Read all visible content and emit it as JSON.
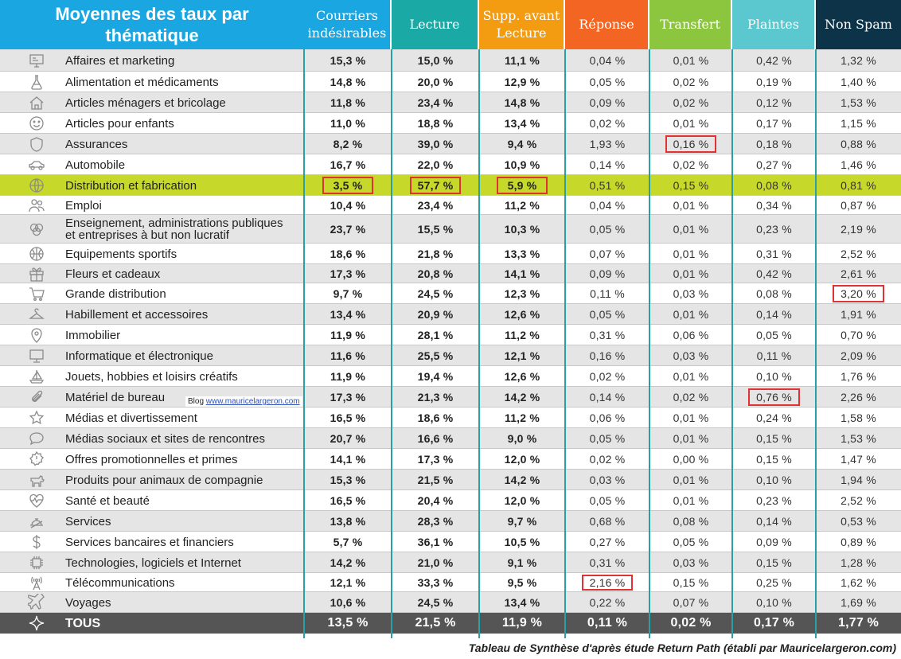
{
  "chart_data": {
    "type": "table",
    "title": "Moyennes des taux par thématique",
    "columns": [
      "Courriers indésirables",
      "Lecture",
      "Supp. avant Lecture",
      "Réponse",
      "Transfert",
      "Plaintes",
      "Non Spam"
    ],
    "column_colors": [
      "#1aa6e0",
      "#1ba9a6",
      "#f39c12",
      "#f26522",
      "#8cc63f",
      "#5bc7cf",
      "#0d3349"
    ],
    "rows": [
      {
        "label": "Affaires et marketing",
        "icon": "presentation-icon",
        "values": [
          "15,3 %",
          "15,0 %",
          "11,1 %",
          "0,04 %",
          "0,01 %",
          "0,42 %",
          "1,32 %"
        ]
      },
      {
        "label": "Alimentation et médicaments",
        "icon": "flask-icon",
        "values": [
          "14,8 %",
          "20,0 %",
          "12,9 %",
          "0,05 %",
          "0,02 %",
          "0,19 %",
          "1,40 %"
        ]
      },
      {
        "label": "Articles ménagers et bricolage",
        "icon": "house-icon",
        "values": [
          "11,8 %",
          "23,4 %",
          "14,8 %",
          "0,09 %",
          "0,02 %",
          "0,12 %",
          "1,53 %"
        ]
      },
      {
        "label": "Articles pour enfants",
        "icon": "smiley-icon",
        "values": [
          "11,0 %",
          "18,8 %",
          "13,4 %",
          "0,02 %",
          "0,01 %",
          "0,17 %",
          "1,15 %"
        ]
      },
      {
        "label": "Assurances",
        "icon": "shield-icon",
        "values": [
          "8,2 %",
          "39,0 %",
          "9,4 %",
          "1,93 %",
          "0,16 %",
          "0,18 %",
          "0,88 %"
        ]
      },
      {
        "label": "Automobile",
        "icon": "car-icon",
        "values": [
          "16,7 %",
          "22,0 %",
          "10,9 %",
          "0,14 %",
          "0,02 %",
          "0,27 %",
          "1,46 %"
        ]
      },
      {
        "label": "Distribution et fabrication",
        "icon": "globe-icon",
        "values": [
          "3,5 %",
          "57,7 %",
          "5,9 %",
          "0,51 %",
          "0,15 %",
          "0,08 %",
          "0,81 %"
        ]
      },
      {
        "label": "Emploi",
        "icon": "people-icon",
        "values": [
          "10,4 %",
          "23,4 %",
          "11,2 %",
          "0,04 %",
          "0,01 %",
          "0,34 %",
          "0,87 %"
        ]
      },
      {
        "label": "Enseignement, administrations publiques et entreprises à but non lucratif",
        "label_lines": [
          "Enseignement, administrations publiques",
          "et entreprises à but non lucratif"
        ],
        "icon": "circles-icon",
        "values": [
          "23,7 %",
          "15,5 %",
          "10,3 %",
          "0,05 %",
          "0,01 %",
          "0,23 %",
          "2,19 %"
        ]
      },
      {
        "label": "Equipements sportifs",
        "icon": "ball-icon",
        "values": [
          "18,6 %",
          "21,8 %",
          "13,3 %",
          "0,07 %",
          "0,01 %",
          "0,31 %",
          "2,52 %"
        ]
      },
      {
        "label": "Fleurs et cadeaux",
        "icon": "gift-icon",
        "values": [
          "17,3 %",
          "20,8 %",
          "14,1 %",
          "0,09 %",
          "0,01 %",
          "0,42 %",
          "2,61 %"
        ]
      },
      {
        "label": "Grande distribution",
        "icon": "cart-icon",
        "values": [
          "9,7 %",
          "24,5 %",
          "12,3 %",
          "0,11 %",
          "0,03 %",
          "0,08 %",
          "3,20 %"
        ]
      },
      {
        "label": "Habillement et accessoires",
        "icon": "hanger-icon",
        "values": [
          "13,4 %",
          "20,9 %",
          "12,6 %",
          "0,05 %",
          "0,01 %",
          "0,14 %",
          "1,91 %"
        ]
      },
      {
        "label": "Immobilier",
        "icon": "location-pin-icon",
        "values": [
          "11,9 %",
          "28,1 %",
          "11,2 %",
          "0,31 %",
          "0,06 %",
          "0,05 %",
          "0,70 %"
        ]
      },
      {
        "label": "Informatique et électronique",
        "icon": "monitor-icon",
        "values": [
          "11,6 %",
          "25,5 %",
          "12,1 %",
          "0,16 %",
          "0,03 %",
          "0,11 %",
          "2,09 %"
        ]
      },
      {
        "label": "Jouets, hobbies et loisirs créatifs",
        "icon": "sailboat-icon",
        "values": [
          "11,9 %",
          "19,4 %",
          "12,6 %",
          "0,02 %",
          "0,01 %",
          "0,10 %",
          "1,76 %"
        ]
      },
      {
        "label": "Matériel de bureau",
        "icon": "paperclip-icon",
        "values": [
          "17,3 %",
          "21,3 %",
          "14,2 %",
          "0,14 %",
          "0,02 %",
          "0,76 %",
          "2,26 %"
        ]
      },
      {
        "label": "Médias et divertissement",
        "icon": "star-icon",
        "values": [
          "16,5 %",
          "18,6 %",
          "11,2 %",
          "0,06 %",
          "0,01 %",
          "0,24 %",
          "1,58 %"
        ]
      },
      {
        "label": "Médias sociaux et sites de rencontres",
        "icon": "speech-bubble-icon",
        "values": [
          "20,7 %",
          "16,6 %",
          "9,0 %",
          "0,05 %",
          "0,01 %",
          "0,15 %",
          "1,53 %"
        ]
      },
      {
        "label": "Offres promotionnelles et primes",
        "icon": "badge-icon",
        "values": [
          "14,1 %",
          "17,3 %",
          "12,0 %",
          "0,02 %",
          "0,00 %",
          "0,15 %",
          "1,47 %"
        ]
      },
      {
        "label": "Produits pour animaux de compagnie",
        "icon": "dog-icon",
        "values": [
          "15,3 %",
          "21,5 %",
          "14,2 %",
          "0,03 %",
          "0,01 %",
          "0,10 %",
          "1,94 %"
        ]
      },
      {
        "label": "Santé et beauté",
        "icon": "heartbeat-icon",
        "values": [
          "16,5 %",
          "20,4 %",
          "12,0 %",
          "0,05 %",
          "0,01 %",
          "0,23 %",
          "2,52 %"
        ]
      },
      {
        "label": "Services",
        "icon": "service-bell-icon",
        "values": [
          "13,8 %",
          "28,3 %",
          "9,7 %",
          "0,68 %",
          "0,08 %",
          "0,14 %",
          "0,53 %"
        ]
      },
      {
        "label": "Services bancaires et financiers",
        "icon": "dollar-icon",
        "values": [
          "5,7 %",
          "36,1 %",
          "10,5 %",
          "0,27 %",
          "0,05 %",
          "0,09 %",
          "0,89 %"
        ]
      },
      {
        "label": "Technologies, logiciels et Internet",
        "icon": "chip-icon",
        "values": [
          "14,2 %",
          "21,0 %",
          "9,1 %",
          "0,31 %",
          "0,03 %",
          "0,15 %",
          "1,28 %"
        ]
      },
      {
        "label": "Télécommunications",
        "icon": "antenna-icon",
        "values": [
          "12,1 %",
          "33,3 %",
          "9,5 %",
          "2,16 %",
          "0,15 %",
          "0,25 %",
          "1,62 %"
        ]
      },
      {
        "label": "Voyages",
        "icon": "airplane-icon",
        "values": [
          "10,6 %",
          "24,5 %",
          "13,4 %",
          "0,22 %",
          "0,07 %",
          "0,10 %",
          "1,69 %"
        ]
      }
    ],
    "total": {
      "label": "TOUS",
      "icon": "sparkle-icon",
      "values": [
        "13,5 %",
        "21,5 %",
        "11,9 %",
        "0,11 %",
        "0,02 %",
        "0,17 %",
        "1,77 %"
      ]
    },
    "highlighted_row": "Distribution et fabrication",
    "highlight_color": "#c6d92a",
    "boxed_cells": [
      {
        "row": "Distribution et fabrication",
        "column": "Courriers indésirables"
      },
      {
        "row": "Distribution et fabrication",
        "column": "Lecture"
      },
      {
        "row": "Distribution et fabrication",
        "column": "Supp. avant Lecture"
      },
      {
        "row": "Assurances",
        "column": "Transfert"
      },
      {
        "row": "Grande distribution",
        "column": "Non Spam"
      },
      {
        "row": "Matériel de bureau",
        "column": "Plaintes"
      },
      {
        "row": "Télécommunications",
        "column": "Réponse"
      }
    ],
    "box_color": "#e03232"
  },
  "watermark": {
    "prefix": "Blog ",
    "link": "www.mauricelargeron.com"
  },
  "caption": "Tableau de Synthèse d'après étude Return Path (établi par Mauricelargeron.com)"
}
